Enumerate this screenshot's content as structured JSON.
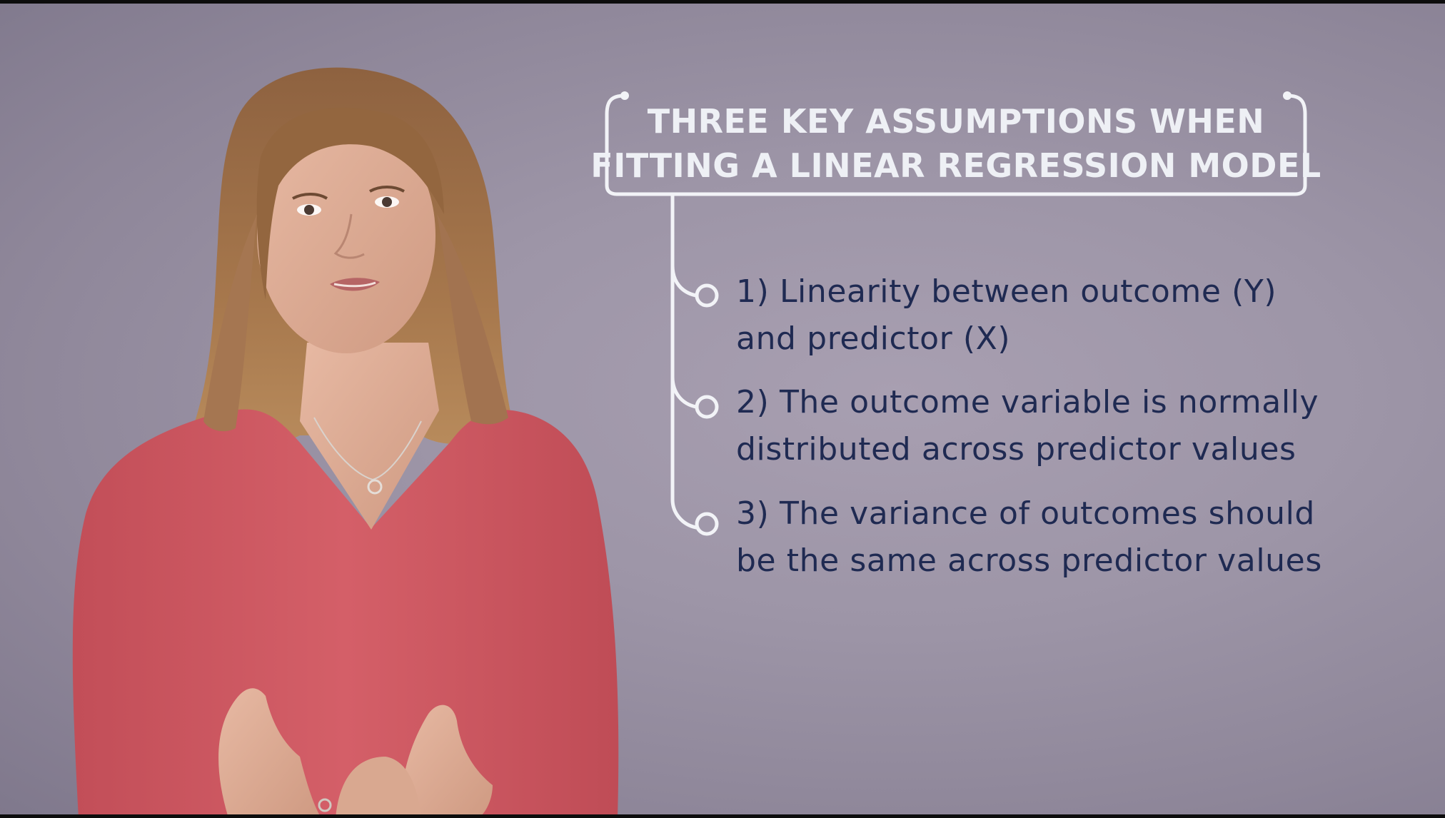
{
  "title": {
    "line1": "THREE KEY ASSUMPTIONS WHEN",
    "line2": "FITTING A LINEAR REGRESSION MODEL"
  },
  "assumptions": [
    {
      "line1": "1) Linearity between outcome (Y)",
      "line2": "and predictor (X)"
    },
    {
      "line1": "2) The outcome variable is normally",
      "line2": "distributed across predictor values"
    },
    {
      "line1": "3) The variance of outcomes should",
      "line2": "be the same across predictor values"
    }
  ],
  "colors": {
    "background": "#9d95a7",
    "title_text": "#eef0f5",
    "bracket_line": "#f2f3f7",
    "item_text": "#1f2a52",
    "shirt": "#cf5a63",
    "hair": "#9a6b44",
    "skin": "#dfae98"
  }
}
